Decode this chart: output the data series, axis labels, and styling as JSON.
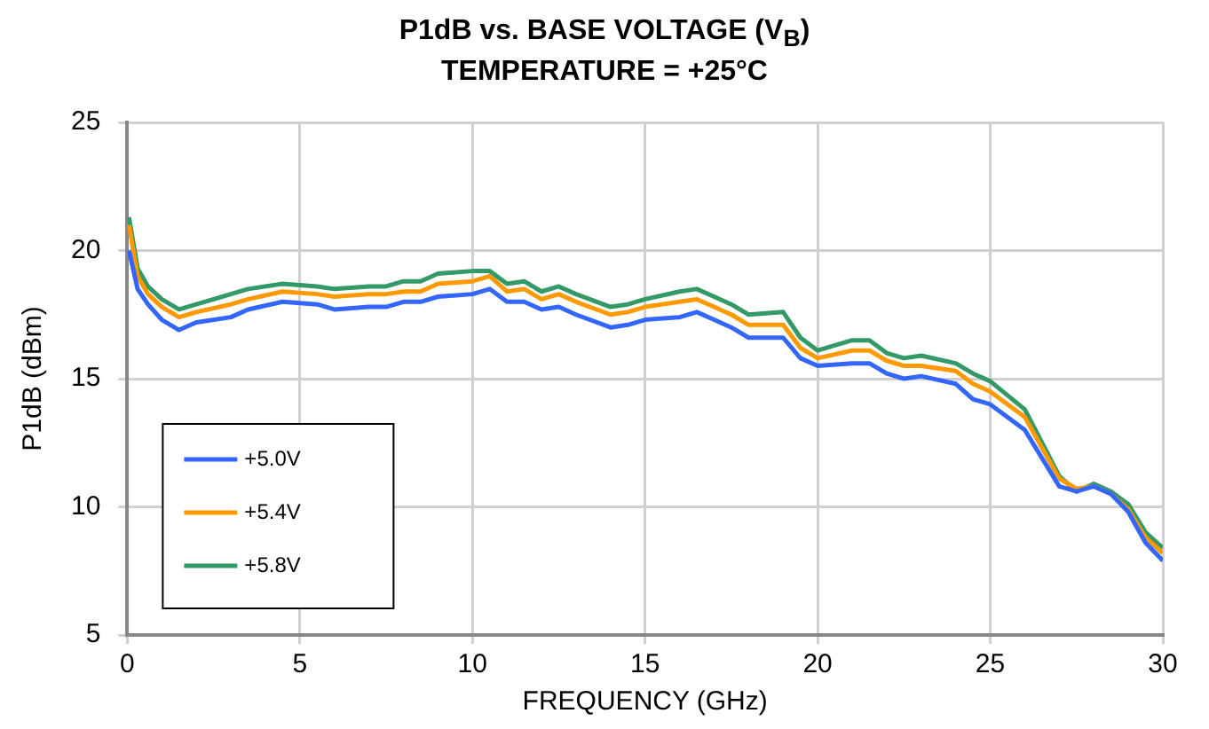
{
  "chart_data": {
    "type": "line",
    "title": "P1dB vs. BASE VOLTAGE (V$_{B}$)",
    "subtitle": "TEMPERATURE = +25°C",
    "xlabel": "FREQUENCY (GHz)",
    "ylabel": "P1dB (dBm)",
    "x": [
      0.05,
      0.3,
      0.6,
      1,
      1.5,
      2,
      3,
      3.5,
      4.5,
      5.5,
      6,
      7,
      7.5,
      8,
      8.5,
      9,
      10,
      10.5,
      11,
      11.5,
      12,
      12.5,
      13,
      14,
      14.5,
      15,
      16,
      16.5,
      17,
      17.5,
      18,
      19,
      19.5,
      20,
      21,
      21.5,
      22,
      22.5,
      23,
      24,
      24.5,
      25,
      26,
      27,
      27.5,
      28,
      28.5,
      29,
      29.5,
      30
    ],
    "series": [
      {
        "name": "+5.0V",
        "color": "#3366ff",
        "values": [
          20.0,
          18.5,
          17.9,
          17.3,
          16.9,
          17.2,
          17.4,
          17.7,
          18.0,
          17.9,
          17.7,
          17.8,
          17.8,
          18.0,
          18.0,
          18.2,
          18.3,
          18.5,
          18.0,
          18.0,
          17.7,
          17.8,
          17.5,
          17.0,
          17.1,
          17.3,
          17.4,
          17.6,
          17.3,
          17.0,
          16.6,
          16.6,
          15.8,
          15.5,
          15.6,
          15.6,
          15.2,
          15.0,
          15.1,
          14.8,
          14.2,
          14.0,
          13.0,
          10.8,
          10.6,
          10.8,
          10.5,
          9.8,
          8.6,
          7.9
        ]
      },
      {
        "name": "+5.4V",
        "color": "#ff9900",
        "values": [
          21.0,
          19.0,
          18.3,
          17.8,
          17.4,
          17.6,
          17.9,
          18.1,
          18.4,
          18.3,
          18.2,
          18.3,
          18.3,
          18.4,
          18.4,
          18.7,
          18.8,
          19.0,
          18.4,
          18.5,
          18.1,
          18.3,
          18.0,
          17.5,
          17.6,
          17.8,
          18.0,
          18.1,
          17.8,
          17.5,
          17.1,
          17.1,
          16.2,
          15.8,
          16.1,
          16.1,
          15.7,
          15.5,
          15.5,
          15.3,
          14.8,
          14.5,
          13.5,
          11.1,
          10.7,
          10.8,
          10.5,
          9.9,
          8.8,
          8.2
        ]
      },
      {
        "name": "+5.8V",
        "color": "#339966",
        "values": [
          21.3,
          19.3,
          18.6,
          18.1,
          17.7,
          17.9,
          18.3,
          18.5,
          18.7,
          18.6,
          18.5,
          18.6,
          18.6,
          18.8,
          18.8,
          19.1,
          19.2,
          19.2,
          18.7,
          18.8,
          18.4,
          18.6,
          18.3,
          17.8,
          17.9,
          18.1,
          18.4,
          18.5,
          18.2,
          17.9,
          17.5,
          17.6,
          16.6,
          16.1,
          16.5,
          16.5,
          16.0,
          15.8,
          15.9,
          15.6,
          15.2,
          14.9,
          13.8,
          11.2,
          10.6,
          10.9,
          10.6,
          10.1,
          9.0,
          8.4
        ]
      }
    ],
    "xlim": [
      0,
      30
    ],
    "xticks": [
      0,
      5,
      10,
      15,
      20,
      25,
      30
    ],
    "ylim": [
      5,
      25
    ],
    "yticks": [
      5,
      10,
      15,
      20,
      25
    ],
    "grid": true,
    "legend": "bottom left",
    "marker": "none",
    "line_style": "solid"
  }
}
